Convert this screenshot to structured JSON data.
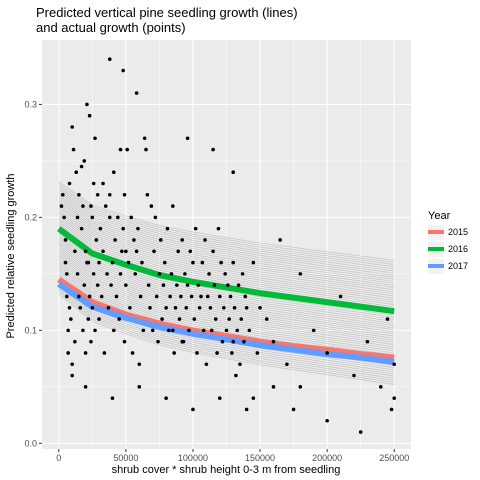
{
  "chart_data": {
    "type": "scatter",
    "title_line1": "Predicted vertical pine seedling growth (lines)",
    "title_line2": "and actual growth (points)",
    "xlabel": "shrub cover * shrub height 0-3 m from seedling",
    "ylabel": "Predicted relative seedling growth",
    "xlim": [
      -12500,
      262500
    ],
    "ylim": [
      -0.005,
      0.357
    ],
    "x_ticks": [
      0,
      50000,
      100000,
      150000,
      200000,
      250000
    ],
    "x_tick_labels": [
      "0",
      "50000",
      "100000",
      "150000",
      "200000",
      "250000"
    ],
    "y_ticks": [
      0.0,
      0.1,
      0.2,
      0.3
    ],
    "y_tick_labels": [
      "0.0",
      "0.1",
      "0.2",
      "0.3"
    ],
    "grid": true,
    "background": "#ebebeb",
    "grid_color": "#ffffff",
    "legend": {
      "title": "Year",
      "position": "right",
      "entries": [
        {
          "label": "2015",
          "color": "#f8766d"
        },
        {
          "label": "2016",
          "color": "#00ba38"
        },
        {
          "label": "2017",
          "color": "#619cff"
        }
      ]
    },
    "prediction_lines": {
      "color": "#bdbdbd",
      "count": 60,
      "fan_start": [
        0.132,
        0.232
      ],
      "fan_end": [
        0.052,
        0.162
      ]
    },
    "series": [
      {
        "name": "2015",
        "color": "#f8766d",
        "x": [
          0,
          25000,
          50000,
          75000,
          100000,
          125000,
          150000,
          175000,
          200000,
          225000,
          250000
        ],
        "values": [
          0.145,
          0.125,
          0.114,
          0.106,
          0.1,
          0.095,
          0.09,
          0.086,
          0.083,
          0.079,
          0.076
        ]
      },
      {
        "name": "2016",
        "color": "#00ba38",
        "x": [
          0,
          25000,
          50000,
          75000,
          100000,
          125000,
          150000,
          175000,
          200000,
          225000,
          250000
        ],
        "values": [
          0.19,
          0.168,
          0.158,
          0.149,
          0.143,
          0.138,
          0.133,
          0.129,
          0.125,
          0.121,
          0.117
        ]
      },
      {
        "name": "2017",
        "color": "#619cff",
        "x": [
          0,
          25000,
          50000,
          75000,
          100000,
          125000,
          150000,
          175000,
          200000,
          225000,
          250000
        ],
        "values": [
          0.141,
          0.121,
          0.111,
          0.103,
          0.097,
          0.092,
          0.087,
          0.083,
          0.079,
          0.076,
          0.072
        ]
      }
    ],
    "points": [
      [
        2000,
        0.21
      ],
      [
        3000,
        0.22
      ],
      [
        4000,
        0.2
      ],
      [
        5000,
        0.18
      ],
      [
        5000,
        0.16
      ],
      [
        6000,
        0.15
      ],
      [
        6000,
        0.13
      ],
      [
        7000,
        0.08
      ],
      [
        7000,
        0.1
      ],
      [
        8000,
        0.23
      ],
      [
        8000,
        0.12
      ],
      [
        9000,
        0.11
      ],
      [
        10000,
        0.28
      ],
      [
        10000,
        0.07
      ],
      [
        10000,
        0.06
      ],
      [
        11000,
        0.26
      ],
      [
        12000,
        0.17
      ],
      [
        12000,
        0.09
      ],
      [
        13000,
        0.24
      ],
      [
        14000,
        0.2
      ],
      [
        14000,
        0.15
      ],
      [
        15000,
        0.22
      ],
      [
        15000,
        0.13
      ],
      [
        16000,
        0.12
      ],
      [
        17000,
        0.245
      ],
      [
        17000,
        0.19
      ],
      [
        18000,
        0.21
      ],
      [
        18000,
        0.1
      ],
      [
        19000,
        0.25
      ],
      [
        19000,
        0.14
      ],
      [
        20000,
        0.17
      ],
      [
        20000,
        0.08
      ],
      [
        21000,
        0.3
      ],
      [
        21000,
        0.16
      ],
      [
        22000,
        0.16
      ],
      [
        22000,
        0.11
      ],
      [
        23000,
        0.29
      ],
      [
        23000,
        0.13
      ],
      [
        24000,
        0.21
      ],
      [
        24000,
        0.09
      ],
      [
        25000,
        0.2
      ],
      [
        25000,
        0.12
      ],
      [
        26000,
        0.23
      ],
      [
        26000,
        0.15
      ],
      [
        27000,
        0.27
      ],
      [
        27000,
        0.1
      ],
      [
        28000,
        0.18
      ],
      [
        29000,
        0.22
      ],
      [
        29000,
        0.14
      ],
      [
        30000,
        0.16
      ],
      [
        30000,
        0.11
      ],
      [
        31000,
        0.19
      ],
      [
        32000,
        0.13
      ],
      [
        33000,
        0.23
      ],
      [
        33000,
        0.17
      ],
      [
        34000,
        0.08
      ],
      [
        35000,
        0.21
      ],
      [
        36000,
        0.15
      ],
      [
        37000,
        0.12
      ],
      [
        38000,
        0.22
      ],
      [
        38000,
        0.2
      ],
      [
        39000,
        0.14
      ],
      [
        40000,
        0.16
      ],
      [
        41000,
        0.24
      ],
      [
        41000,
        0.1
      ],
      [
        42000,
        0.18
      ],
      [
        43000,
        0.13
      ],
      [
        44000,
        0.2
      ],
      [
        45000,
        0.11
      ],
      [
        46000,
        0.26
      ],
      [
        46000,
        0.15
      ],
      [
        47000,
        0.17
      ],
      [
        48000,
        0.19
      ],
      [
        49000,
        0.22
      ],
      [
        49000,
        0.09
      ],
      [
        50000,
        0.14
      ],
      [
        50000,
        0.17
      ],
      [
        51000,
        0.26
      ],
      [
        52000,
        0.16
      ],
      [
        53000,
        0.12
      ],
      [
        54000,
        0.2
      ],
      [
        55000,
        0.08
      ],
      [
        56000,
        0.18
      ],
      [
        57000,
        0.15
      ],
      [
        58000,
        0.17
      ],
      [
        59000,
        0.19
      ],
      [
        60000,
        0.07
      ],
      [
        61000,
        0.13
      ],
      [
        62000,
        0.16
      ],
      [
        63000,
        0.1
      ],
      [
        64000,
        0.27
      ],
      [
        65000,
        0.26
      ],
      [
        66000,
        0.22
      ],
      [
        67000,
        0.14
      ],
      [
        68000,
        0.12
      ],
      [
        69000,
        0.21
      ],
      [
        70000,
        0.1
      ],
      [
        71000,
        0.17
      ],
      [
        72000,
        0.2
      ],
      [
        73000,
        0.13
      ],
      [
        74000,
        0.09
      ],
      [
        75000,
        0.15
      ],
      [
        76000,
        0.18
      ],
      [
        77000,
        0.11
      ],
      [
        78000,
        0.14
      ],
      [
        79000,
        0.16
      ],
      [
        80000,
        0.12
      ],
      [
        81000,
        0.19
      ],
      [
        82000,
        0.1
      ],
      [
        83000,
        0.13
      ],
      [
        84000,
        0.15
      ],
      [
        85000,
        0.21
      ],
      [
        86000,
        0.08
      ],
      [
        87000,
        0.12
      ],
      [
        88000,
        0.14
      ],
      [
        89000,
        0.17
      ],
      [
        90000,
        0.11
      ],
      [
        91000,
        0.13
      ],
      [
        92000,
        0.18
      ],
      [
        93000,
        0.09
      ],
      [
        94000,
        0.15
      ],
      [
        95000,
        0.12
      ],
      [
        96000,
        0.14
      ],
      [
        97000,
        0.1
      ],
      [
        98000,
        0.17
      ],
      [
        99000,
        0.13
      ],
      [
        100000,
        0.16
      ],
      [
        101000,
        0.11
      ],
      [
        102000,
        0.19
      ],
      [
        103000,
        0.08
      ],
      [
        104000,
        0.14
      ],
      [
        105000,
        0.12
      ],
      [
        106000,
        0.13
      ],
      [
        107000,
        0.16
      ],
      [
        108000,
        0.1
      ],
      [
        109000,
        0.18
      ],
      [
        110000,
        0.07
      ],
      [
        111000,
        0.13
      ],
      [
        112000,
        0.15
      ],
      [
        113000,
        0.12
      ],
      [
        114000,
        0.1
      ],
      [
        115000,
        0.17
      ],
      [
        116000,
        0.14
      ],
      [
        117000,
        0.11
      ],
      [
        118000,
        0.08
      ],
      [
        119000,
        0.19
      ],
      [
        120000,
        0.13
      ],
      [
        121000,
        0.16
      ],
      [
        122000,
        0.09
      ],
      [
        123000,
        0.12
      ],
      [
        124000,
        0.15
      ],
      [
        125000,
        0.1
      ],
      [
        126000,
        0.14
      ],
      [
        127000,
        0.11
      ],
      [
        128000,
        0.13
      ],
      [
        129000,
        0.08
      ],
      [
        130000,
        0.16
      ],
      [
        131000,
        0.12
      ],
      [
        132000,
        0.06
      ],
      [
        133000,
        0.1
      ],
      [
        134000,
        0.14
      ],
      [
        135000,
        0.07
      ],
      [
        136000,
        0.11
      ],
      [
        137000,
        0.15
      ],
      [
        138000,
        0.09
      ],
      [
        139000,
        0.13
      ],
      [
        140000,
        0.12
      ],
      [
        142000,
        0.1
      ],
      [
        145000,
        0.16
      ],
      [
        148000,
        0.08
      ],
      [
        150000,
        0.12
      ],
      [
        155000,
        0.11
      ],
      [
        160000,
        0.09
      ],
      [
        170000,
        0.07
      ],
      [
        180000,
        0.15
      ],
      [
        190000,
        0.1
      ],
      [
        200000,
        0.08
      ],
      [
        210000,
        0.13
      ],
      [
        220000,
        0.06
      ],
      [
        230000,
        0.09
      ],
      [
        240000,
        0.05
      ],
      [
        245000,
        0.11
      ],
      [
        250000,
        0.07
      ],
      [
        250000,
        0.04
      ],
      [
        38000,
        0.34
      ],
      [
        48000,
        0.33
      ],
      [
        58000,
        0.31
      ],
      [
        96000,
        0.27
      ],
      [
        115000,
        0.26
      ],
      [
        130000,
        0.24
      ],
      [
        165000,
        0.18
      ],
      [
        20000,
        0.05
      ],
      [
        40000,
        0.04
      ],
      [
        60000,
        0.05
      ],
      [
        80000,
        0.04
      ],
      [
        100000,
        0.03
      ],
      [
        120000,
        0.04
      ],
      [
        140000,
        0.03
      ],
      [
        175000,
        0.03
      ],
      [
        200000,
        0.02
      ],
      [
        225000,
        0.01
      ],
      [
        248000,
        0.03
      ],
      [
        85000,
        0.1
      ],
      [
        92000,
        0.09
      ],
      [
        130000,
        0.09
      ],
      [
        145000,
        0.04
      ],
      [
        160000,
        0.05
      ],
      [
        180000,
        0.05
      ]
    ]
  }
}
